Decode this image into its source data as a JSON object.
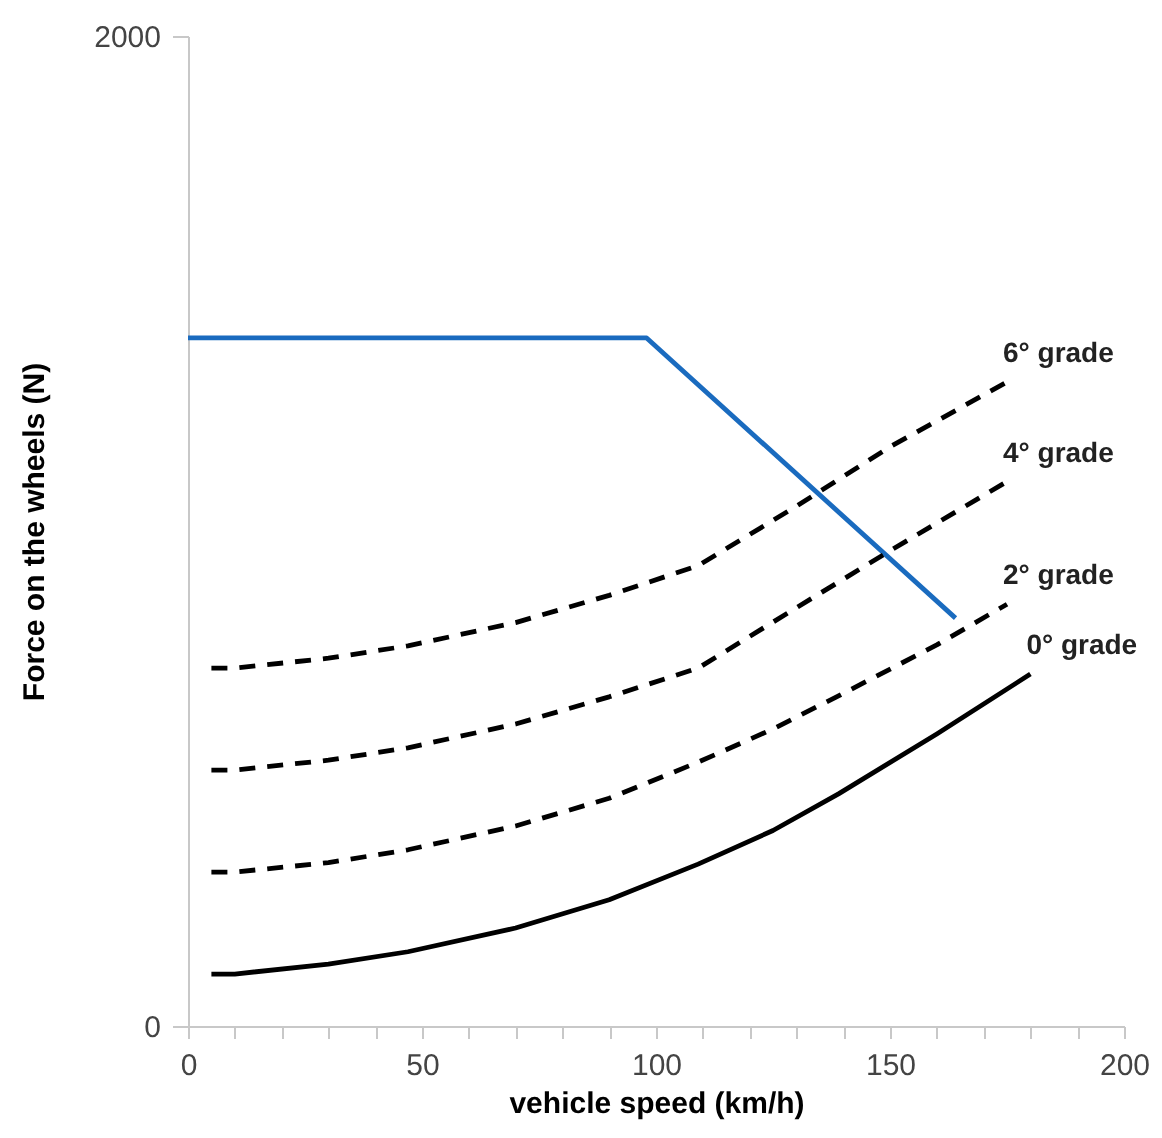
{
  "chart_data": {
    "type": "line",
    "xlabel": "vehicle speed (km/h)",
    "ylabel": "Force on the wheels (N)",
    "xlim": [
      0,
      200
    ],
    "ylim": [
      0,
      2000
    ],
    "xticks": [
      0,
      {
        "value": 10,
        "label": null
      },
      {
        "value": 20,
        "label": null
      },
      {
        "value": 30,
        "label": null
      },
      {
        "value": 40,
        "label": null
      },
      50,
      {
        "value": 60,
        "label": null
      },
      {
        "value": 70,
        "label": null
      },
      {
        "value": 80,
        "label": null
      },
      {
        "value": 90,
        "label": null
      },
      100,
      {
        "value": 110,
        "label": null
      },
      {
        "value": 120,
        "label": null
      },
      {
        "value": 130,
        "label": null
      },
      {
        "value": 140,
        "label": null
      },
      150,
      {
        "value": 160,
        "label": null
      },
      {
        "value": 170,
        "label": null
      },
      {
        "value": 180,
        "label": null
      },
      {
        "value": 190,
        "label": null
      },
      200
    ],
    "yticks": [
      0,
      2000
    ],
    "grid": false,
    "legend": false,
    "series": [
      {
        "color": "#1a6bbf",
        "line_style": "solid",
        "x": [
          0,
          98,
          164
        ],
        "values": [
          1390,
          1390,
          824
        ]
      },
      {
        "name": "6° grade",
        "color": "#000000",
        "line_style": "dashed",
        "x": [
          5,
          10,
          30,
          47,
          70,
          90,
          109,
          130,
          150,
          175
        ],
        "values": [
          723,
          723,
          743,
          768,
          815,
          870,
          930,
          1050,
          1170,
          1301
        ]
      },
      {
        "name": "4° grade",
        "color": "#000000",
        "line_style": "dashed",
        "x": [
          5,
          10,
          30,
          47,
          70,
          90,
          109,
          130,
          150,
          175
        ],
        "values": [
          517,
          517,
          537,
          562,
          610,
          665,
          723,
          845,
          960,
          1100
        ]
      },
      {
        "name": "2° grade",
        "color": "#000000",
        "line_style": "dashed",
        "x": [
          5,
          10,
          30,
          47,
          70,
          90,
          109,
          125,
          139,
          160,
          175
        ],
        "values": [
          311,
          311,
          330,
          356,
          404,
          460,
          533,
          600,
          667,
          770,
          852
        ]
      },
      {
        "name": "0° grade",
        "color": "#000000",
        "line_style": "solid",
        "x": [
          5,
          10,
          30,
          47,
          70,
          90,
          109,
          125,
          139,
          160,
          180
        ],
        "values": [
          105,
          105,
          125,
          150,
          198,
          255,
          327,
          395,
          469,
          590,
          711
        ]
      }
    ]
  }
}
